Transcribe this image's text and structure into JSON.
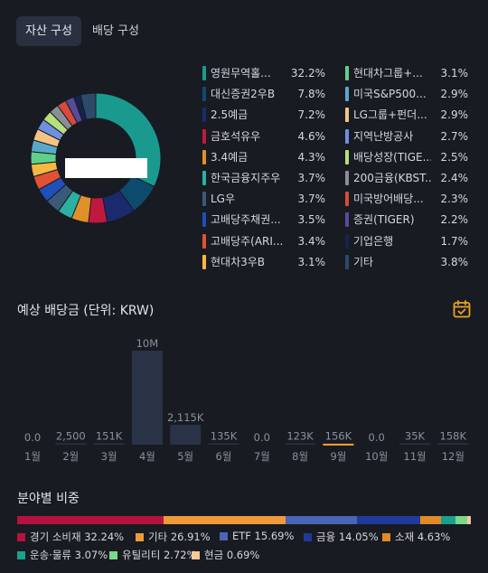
{
  "tabs": [
    {
      "label": "자산 구성",
      "active": true
    },
    {
      "label": "배당 구성",
      "active": false
    }
  ],
  "holdings": [
    {
      "name": "영원무역홀...",
      "pct": "32.2%",
      "value": 32.2,
      "color": "#1a9a8e"
    },
    {
      "name": "대신증권2우B",
      "pct": "7.8%",
      "value": 7.8,
      "color": "#0e4a6e"
    },
    {
      "name": "2.5예금",
      "pct": "7.2%",
      "value": 7.2,
      "color": "#1b2a6e"
    },
    {
      "name": "금호석유우",
      "pct": "4.6%",
      "value": 4.6,
      "color": "#c0193f"
    },
    {
      "name": "3.4예금",
      "pct": "4.3%",
      "value": 4.3,
      "color": "#e0902a"
    },
    {
      "name": "한국금융지주우",
      "pct": "3.7%",
      "value": 3.7,
      "color": "#2bb0a2"
    },
    {
      "name": "LG우",
      "pct": "3.7%",
      "value": 3.7,
      "color": "#3b5a7a"
    },
    {
      "name": "고배당주채권...",
      "pct": "3.5%",
      "value": 3.5,
      "color": "#1f4fb8"
    },
    {
      "name": "고배당주(ARI...",
      "pct": "3.4%",
      "value": 3.4,
      "color": "#e05233"
    },
    {
      "name": "현대차3우B",
      "pct": "3.1%",
      "value": 3.1,
      "color": "#f5b942"
    },
    {
      "name": "현대차그룹+...",
      "pct": "3.1%",
      "value": 3.1,
      "color": "#5fd08a"
    },
    {
      "name": "미국S&P500...",
      "pct": "2.9%",
      "value": 2.9,
      "color": "#5aa8c8"
    },
    {
      "name": "LG그룹+펀더...",
      "pct": "2.9%",
      "value": 2.9,
      "color": "#f3c486"
    },
    {
      "name": "지역난방공사",
      "pct": "2.7%",
      "value": 2.7,
      "color": "#6f8fe0"
    },
    {
      "name": "배당성장(TIGE...",
      "pct": "2.5%",
      "value": 2.5,
      "color": "#b6e07a"
    },
    {
      "name": "200금융(KBST...",
      "pct": "2.4%",
      "value": 2.4,
      "color": "#8a8f96"
    },
    {
      "name": "미국방어배당...",
      "pct": "2.3%",
      "value": 2.3,
      "color": "#d94a3a"
    },
    {
      "name": "증권(TIGER)",
      "pct": "2.2%",
      "value": 2.2,
      "color": "#5a4a9a"
    },
    {
      "name": "기업은행",
      "pct": "1.7%",
      "value": 1.7,
      "color": "#16244a"
    },
    {
      "name": "기타",
      "pct": "3.8%",
      "value": 3.8,
      "color": "#2c4a6a"
    }
  ],
  "dividend": {
    "title": "예상 배당금 (단위: KRW)",
    "calendar_icon": "calendar-icon",
    "chart_data": {
      "type": "bar",
      "title": "예상 배당금 (단위: KRW)",
      "categories": [
        "1월",
        "2월",
        "3월",
        "4월",
        "5월",
        "6월",
        "7월",
        "8월",
        "9월",
        "10월",
        "11월",
        "12월"
      ],
      "values": [
        0,
        2500,
        151000,
        10000000,
        2115000,
        135000,
        0,
        123000,
        156000,
        0,
        35000,
        158000
      ],
      "labels": [
        "0.0",
        "2,500",
        "151K",
        "10M",
        "2,115K",
        "135K",
        "0.0",
        "123K",
        "156K",
        "0.0",
        "35K",
        "158K"
      ],
      "ylim": [
        0,
        10000000
      ],
      "selected": "9월"
    }
  },
  "sector": {
    "title": "분야별 비중",
    "items": [
      {
        "label": "경기 소비재 32.24%",
        "value": 32.24,
        "color": "#b5123f"
      },
      {
        "label": "기타 26.91%",
        "value": 26.91,
        "color": "#f09a3a"
      },
      {
        "label": "ETF 15.69%",
        "value": 15.69,
        "color": "#4a64b8"
      },
      {
        "label": "금융 14.05%",
        "value": 14.05,
        "color": "#1f3a9a"
      },
      {
        "label": "소재 4.63%",
        "value": 4.63,
        "color": "#e08a2a"
      },
      {
        "label": "운송·물류 3.07%",
        "value": 3.07,
        "color": "#1aa08e"
      },
      {
        "label": "유틸리티 2.72%",
        "value": 2.72,
        "color": "#7ad88a"
      },
      {
        "label": "현금 0.69%",
        "value": 0.69,
        "color": "#f3c99a"
      }
    ]
  }
}
